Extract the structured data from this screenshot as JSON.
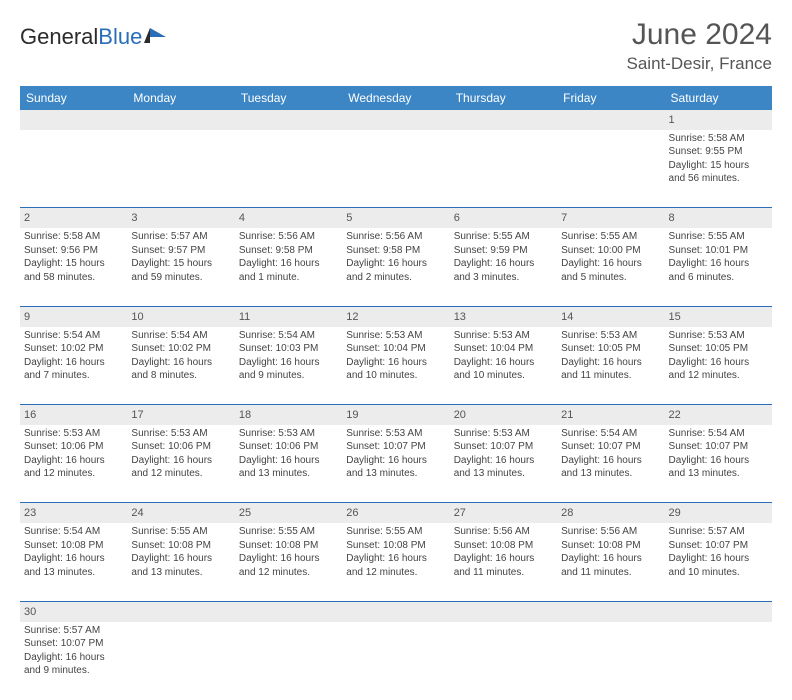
{
  "logo": {
    "text_dark": "General",
    "text_blue": "Blue"
  },
  "title": "June 2024",
  "location": "Saint-Desir, France",
  "colors": {
    "header_bg": "#3d86c6",
    "header_text": "#ffffff",
    "daynum_bg": "#ececec",
    "cell_border": "#2a6db8",
    "text": "#444444",
    "title_text": "#555555"
  },
  "day_headers": [
    "Sunday",
    "Monday",
    "Tuesday",
    "Wednesday",
    "Thursday",
    "Friday",
    "Saturday"
  ],
  "weeks": [
    {
      "nums": [
        "",
        "",
        "",
        "",
        "",
        "",
        "1"
      ],
      "cells": [
        null,
        null,
        null,
        null,
        null,
        null,
        {
          "sunrise": "Sunrise: 5:58 AM",
          "sunset": "Sunset: 9:55 PM",
          "daylight": "Daylight: 15 hours and 56 minutes."
        }
      ]
    },
    {
      "nums": [
        "2",
        "3",
        "4",
        "5",
        "6",
        "7",
        "8"
      ],
      "cells": [
        {
          "sunrise": "Sunrise: 5:58 AM",
          "sunset": "Sunset: 9:56 PM",
          "daylight": "Daylight: 15 hours and 58 minutes."
        },
        {
          "sunrise": "Sunrise: 5:57 AM",
          "sunset": "Sunset: 9:57 PM",
          "daylight": "Daylight: 15 hours and 59 minutes."
        },
        {
          "sunrise": "Sunrise: 5:56 AM",
          "sunset": "Sunset: 9:58 PM",
          "daylight": "Daylight: 16 hours and 1 minute."
        },
        {
          "sunrise": "Sunrise: 5:56 AM",
          "sunset": "Sunset: 9:58 PM",
          "daylight": "Daylight: 16 hours and 2 minutes."
        },
        {
          "sunrise": "Sunrise: 5:55 AM",
          "sunset": "Sunset: 9:59 PM",
          "daylight": "Daylight: 16 hours and 3 minutes."
        },
        {
          "sunrise": "Sunrise: 5:55 AM",
          "sunset": "Sunset: 10:00 PM",
          "daylight": "Daylight: 16 hours and 5 minutes."
        },
        {
          "sunrise": "Sunrise: 5:55 AM",
          "sunset": "Sunset: 10:01 PM",
          "daylight": "Daylight: 16 hours and 6 minutes."
        }
      ]
    },
    {
      "nums": [
        "9",
        "10",
        "11",
        "12",
        "13",
        "14",
        "15"
      ],
      "cells": [
        {
          "sunrise": "Sunrise: 5:54 AM",
          "sunset": "Sunset: 10:02 PM",
          "daylight": "Daylight: 16 hours and 7 minutes."
        },
        {
          "sunrise": "Sunrise: 5:54 AM",
          "sunset": "Sunset: 10:02 PM",
          "daylight": "Daylight: 16 hours and 8 minutes."
        },
        {
          "sunrise": "Sunrise: 5:54 AM",
          "sunset": "Sunset: 10:03 PM",
          "daylight": "Daylight: 16 hours and 9 minutes."
        },
        {
          "sunrise": "Sunrise: 5:53 AM",
          "sunset": "Sunset: 10:04 PM",
          "daylight": "Daylight: 16 hours and 10 minutes."
        },
        {
          "sunrise": "Sunrise: 5:53 AM",
          "sunset": "Sunset: 10:04 PM",
          "daylight": "Daylight: 16 hours and 10 minutes."
        },
        {
          "sunrise": "Sunrise: 5:53 AM",
          "sunset": "Sunset: 10:05 PM",
          "daylight": "Daylight: 16 hours and 11 minutes."
        },
        {
          "sunrise": "Sunrise: 5:53 AM",
          "sunset": "Sunset: 10:05 PM",
          "daylight": "Daylight: 16 hours and 12 minutes."
        }
      ]
    },
    {
      "nums": [
        "16",
        "17",
        "18",
        "19",
        "20",
        "21",
        "22"
      ],
      "cells": [
        {
          "sunrise": "Sunrise: 5:53 AM",
          "sunset": "Sunset: 10:06 PM",
          "daylight": "Daylight: 16 hours and 12 minutes."
        },
        {
          "sunrise": "Sunrise: 5:53 AM",
          "sunset": "Sunset: 10:06 PM",
          "daylight": "Daylight: 16 hours and 12 minutes."
        },
        {
          "sunrise": "Sunrise: 5:53 AM",
          "sunset": "Sunset: 10:06 PM",
          "daylight": "Daylight: 16 hours and 13 minutes."
        },
        {
          "sunrise": "Sunrise: 5:53 AM",
          "sunset": "Sunset: 10:07 PM",
          "daylight": "Daylight: 16 hours and 13 minutes."
        },
        {
          "sunrise": "Sunrise: 5:53 AM",
          "sunset": "Sunset: 10:07 PM",
          "daylight": "Daylight: 16 hours and 13 minutes."
        },
        {
          "sunrise": "Sunrise: 5:54 AM",
          "sunset": "Sunset: 10:07 PM",
          "daylight": "Daylight: 16 hours and 13 minutes."
        },
        {
          "sunrise": "Sunrise: 5:54 AM",
          "sunset": "Sunset: 10:07 PM",
          "daylight": "Daylight: 16 hours and 13 minutes."
        }
      ]
    },
    {
      "nums": [
        "23",
        "24",
        "25",
        "26",
        "27",
        "28",
        "29"
      ],
      "cells": [
        {
          "sunrise": "Sunrise: 5:54 AM",
          "sunset": "Sunset: 10:08 PM",
          "daylight": "Daylight: 16 hours and 13 minutes."
        },
        {
          "sunrise": "Sunrise: 5:55 AM",
          "sunset": "Sunset: 10:08 PM",
          "daylight": "Daylight: 16 hours and 13 minutes."
        },
        {
          "sunrise": "Sunrise: 5:55 AM",
          "sunset": "Sunset: 10:08 PM",
          "daylight": "Daylight: 16 hours and 12 minutes."
        },
        {
          "sunrise": "Sunrise: 5:55 AM",
          "sunset": "Sunset: 10:08 PM",
          "daylight": "Daylight: 16 hours and 12 minutes."
        },
        {
          "sunrise": "Sunrise: 5:56 AM",
          "sunset": "Sunset: 10:08 PM",
          "daylight": "Daylight: 16 hours and 11 minutes."
        },
        {
          "sunrise": "Sunrise: 5:56 AM",
          "sunset": "Sunset: 10:08 PM",
          "daylight": "Daylight: 16 hours and 11 minutes."
        },
        {
          "sunrise": "Sunrise: 5:57 AM",
          "sunset": "Sunset: 10:07 PM",
          "daylight": "Daylight: 16 hours and 10 minutes."
        }
      ]
    },
    {
      "nums": [
        "30",
        "",
        "",
        "",
        "",
        "",
        ""
      ],
      "cells": [
        {
          "sunrise": "Sunrise: 5:57 AM",
          "sunset": "Sunset: 10:07 PM",
          "daylight": "Daylight: 16 hours and 9 minutes."
        },
        null,
        null,
        null,
        null,
        null,
        null
      ]
    }
  ]
}
